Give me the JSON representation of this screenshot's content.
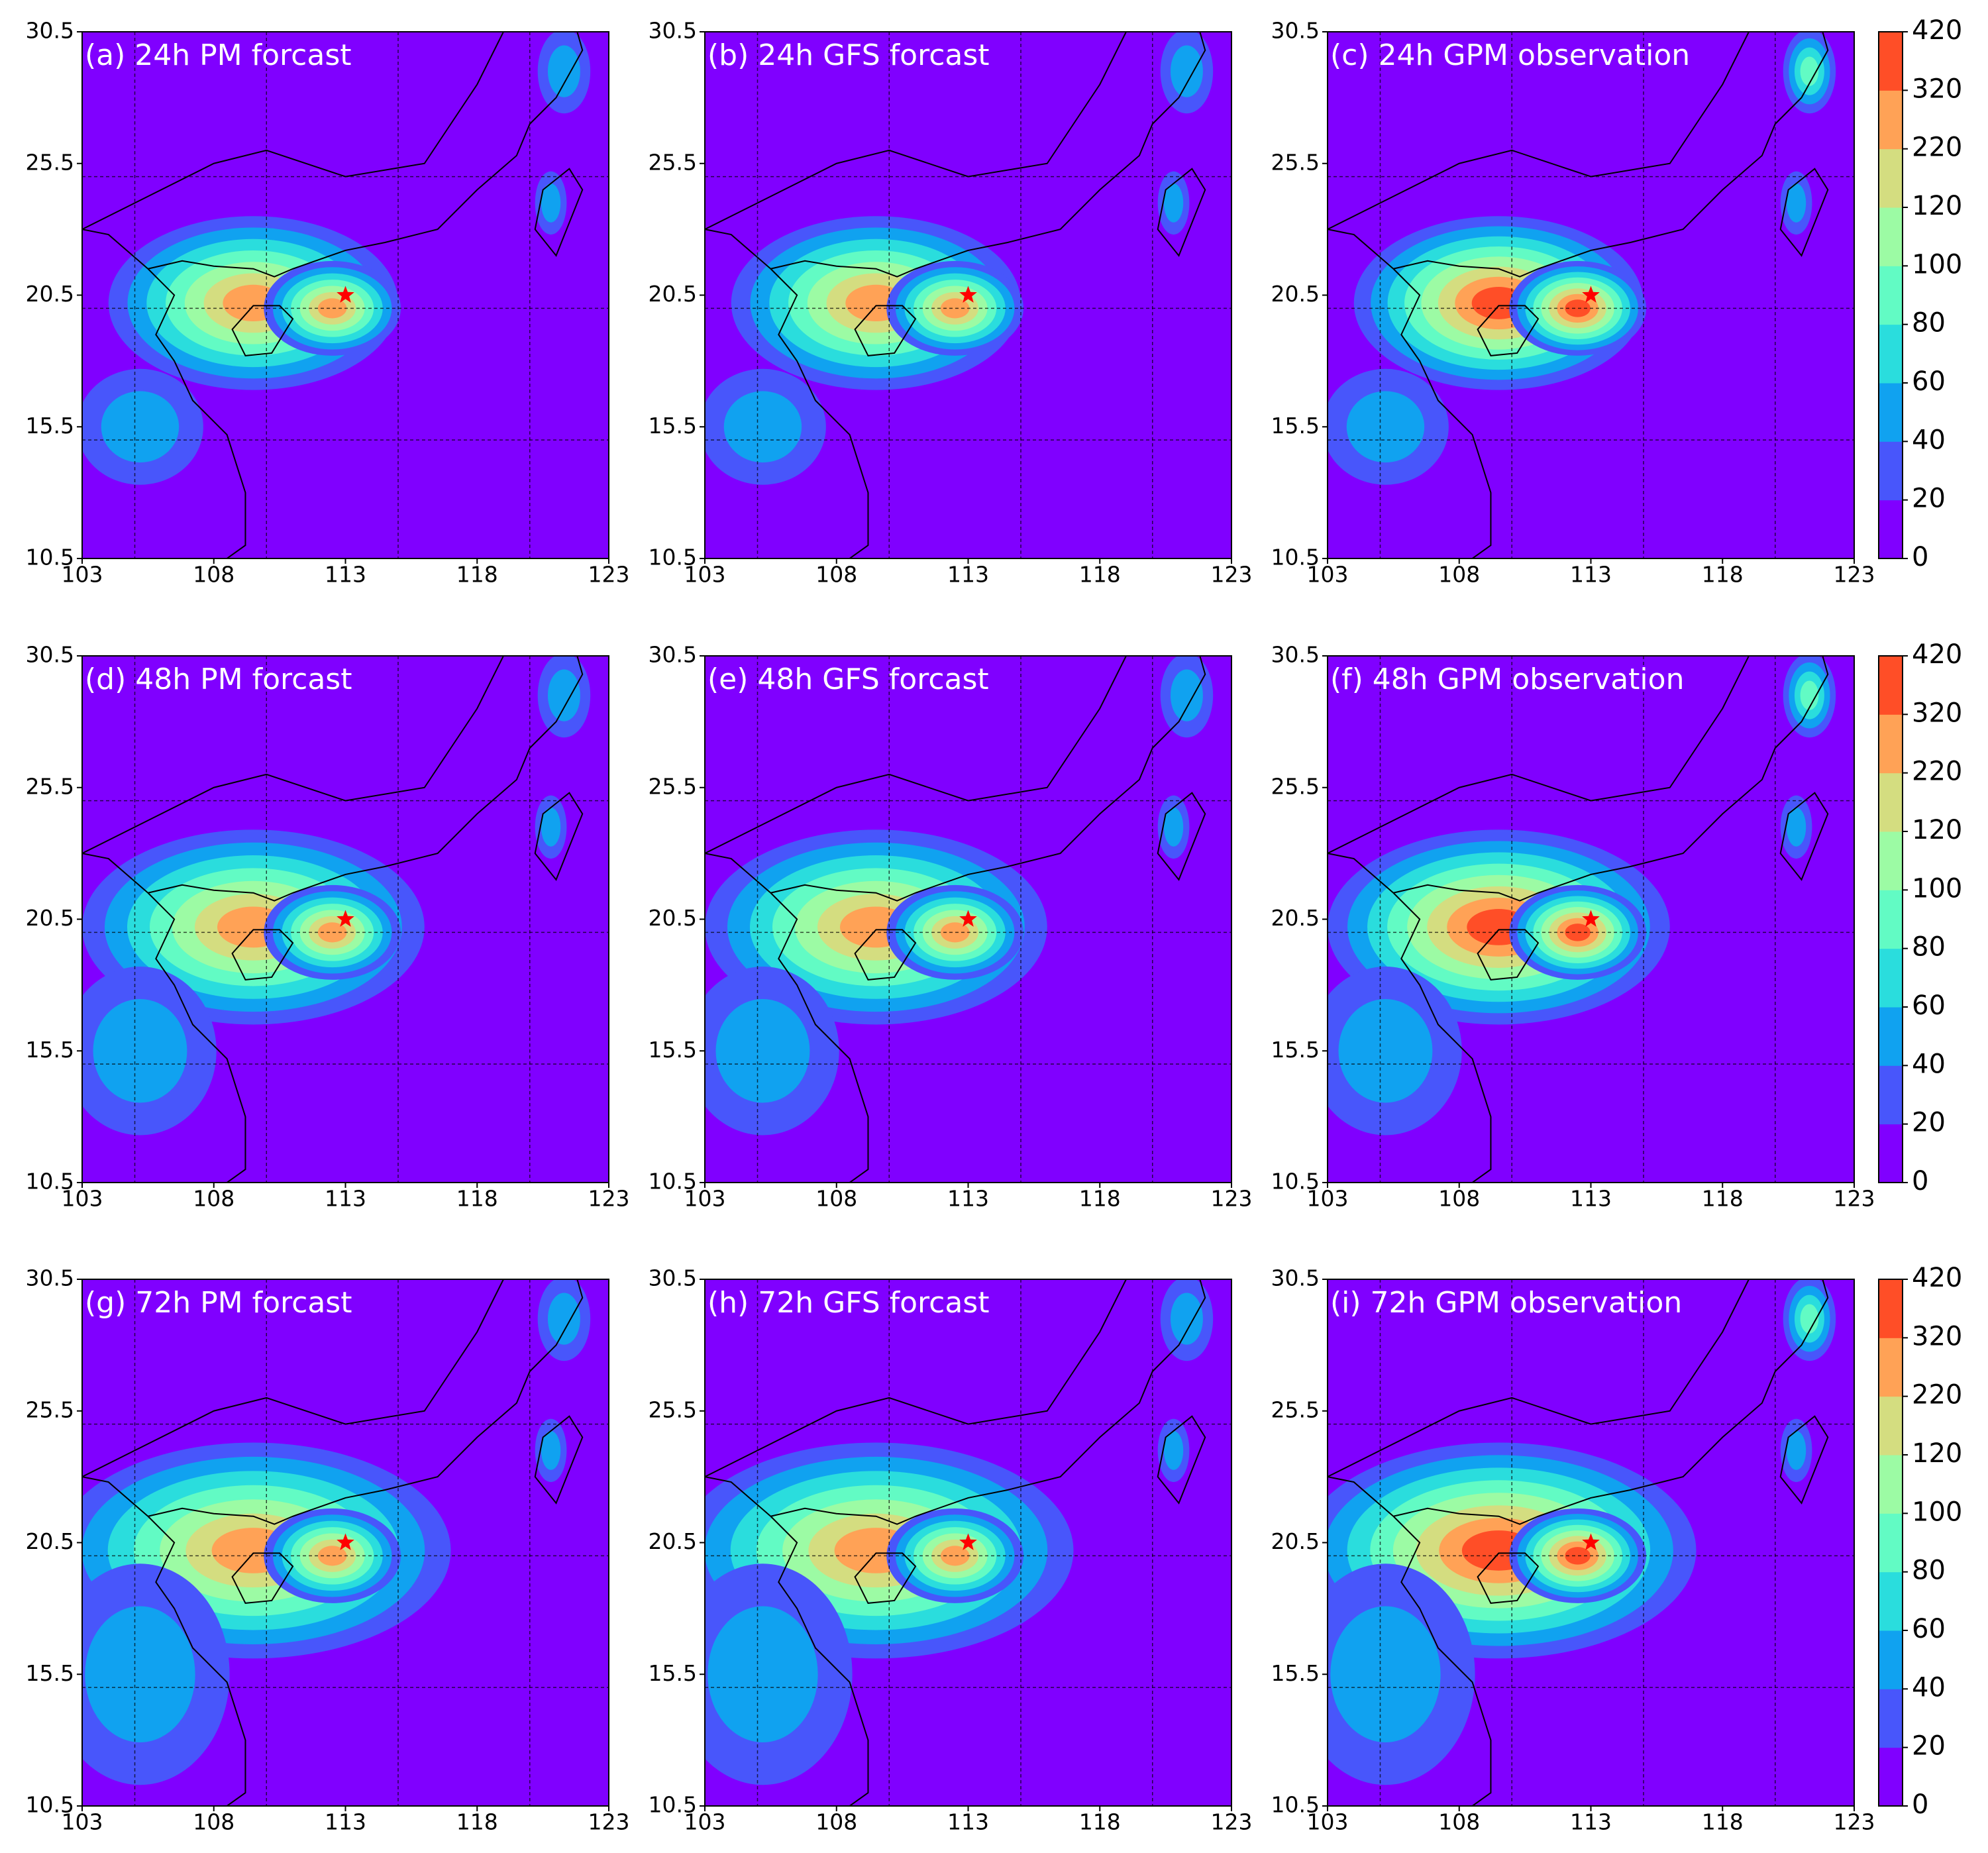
{
  "chart_data": {
    "type": "map",
    "panels": [
      "(a) 24h PM forcast",
      "(b) 24h GFS forcast",
      "(c) 24h GPM observation",
      "(d) 48h PM forcast",
      "(e) 48h GFS forcast",
      "(f) 48h GPM observation",
      "(g) 72h PM forcast",
      "(h) 72h GFS forcast",
      "(i) 72h GPM observation"
    ],
    "xlim": [
      103,
      123
    ],
    "ylim": [
      10.5,
      30.5
    ],
    "xticks": [
      103,
      108,
      113,
      118,
      123
    ],
    "yticks": [
      10.5,
      15.5,
      20.5,
      25.5,
      30.5
    ],
    "grid_lon": [
      105,
      110,
      115,
      120
    ],
    "grid_lat": [
      15,
      20,
      25
    ],
    "marker": {
      "lon": 113,
      "lat": 20.5,
      "color": "#ff0000"
    },
    "colorbar": {
      "levels": [
        0,
        20,
        40,
        60,
        80,
        100,
        120,
        220,
        320,
        420
      ],
      "colors": [
        "#8000ff",
        "#4856fb",
        "#10a2f0",
        "#2adddd",
        "#62fbc4",
        "#9cfba4",
        "#d4dd80",
        "#ffa256",
        "#ff4e27"
      ]
    }
  }
}
